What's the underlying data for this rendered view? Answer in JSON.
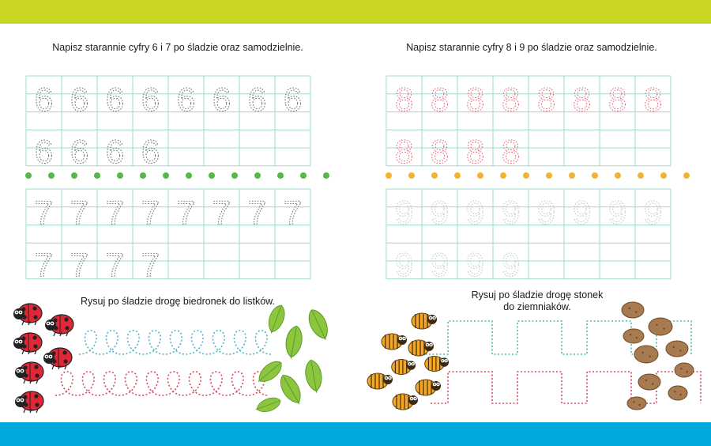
{
  "colors": {
    "top_band": "#c8d523",
    "bottom_band": "#00a9e0",
    "grid": "#9fd9cf",
    "dot_green": "#56b947",
    "dot_yellow": "#f2b233",
    "trace_gray": "#777777",
    "trace_pink": "#e87080",
    "trace_blue": "#4fb3cc",
    "trace_red": "#d9475a",
    "trace_teal": "#4fb8b0"
  },
  "left_page": {
    "instruction_digits": "Napisz starannie cyfry 6 i 7 po śladzie oraz samodzielnie.",
    "grid1_digit": "6",
    "grid2_digit": "7",
    "instruction_path": "Rysuj po śladzie drogę biedronek do listków.",
    "animals_icon": "ladybug-icon",
    "target_icon": "leaf-icon"
  },
  "right_page": {
    "instruction_digits": "Napisz starannie cyfry 8 i 9 po śladzie oraz samodzielnie.",
    "grid1_digit": "8",
    "grid2_digit": "9",
    "instruction_path_line1": "Rysuj po śladzie drogę stonek",
    "instruction_path_line2": "do ziemniaków.",
    "animals_icon": "potato-beetle-icon",
    "target_icon": "potato-icon"
  }
}
